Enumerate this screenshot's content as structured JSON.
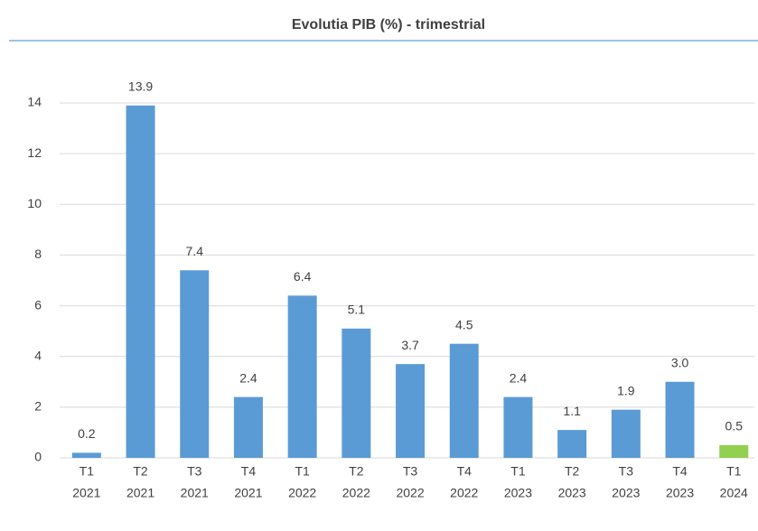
{
  "chart_data": {
    "type": "bar",
    "title": "Evolutia PIB (%) - trimestrial",
    "categories": [
      [
        "T1",
        "2021"
      ],
      [
        "T2",
        "2021"
      ],
      [
        "T3",
        "2021"
      ],
      [
        "T4",
        "2021"
      ],
      [
        "T1",
        "2022"
      ],
      [
        "T2",
        "2022"
      ],
      [
        "T3",
        "2022"
      ],
      [
        "T4",
        "2022"
      ],
      [
        "T1",
        "2023"
      ],
      [
        "T2",
        "2023"
      ],
      [
        "T3",
        "2023"
      ],
      [
        "T4",
        "2023"
      ],
      [
        "T1",
        "2024"
      ]
    ],
    "values": [
      0.2,
      13.9,
      7.4,
      2.4,
      6.4,
      5.1,
      3.7,
      4.5,
      2.4,
      1.1,
      1.9,
      3.0,
      0.5
    ],
    "value_labels": [
      "0.2",
      "13.9",
      "7.4",
      "2.4",
      "6.4",
      "5.1",
      "3.7",
      "4.5",
      "2.4",
      "1.1",
      "1.9",
      "3.0",
      "0.5"
    ],
    "colors": [
      "#5b9bd5",
      "#5b9bd5",
      "#5b9bd5",
      "#5b9bd5",
      "#5b9bd5",
      "#5b9bd5",
      "#5b9bd5",
      "#5b9bd5",
      "#5b9bd5",
      "#5b9bd5",
      "#5b9bd5",
      "#5b9bd5",
      "#92d050"
    ],
    "ylim": [
      0,
      14
    ],
    "yticks": [
      0,
      2,
      4,
      6,
      8,
      10,
      12,
      14
    ],
    "grid": true
  }
}
